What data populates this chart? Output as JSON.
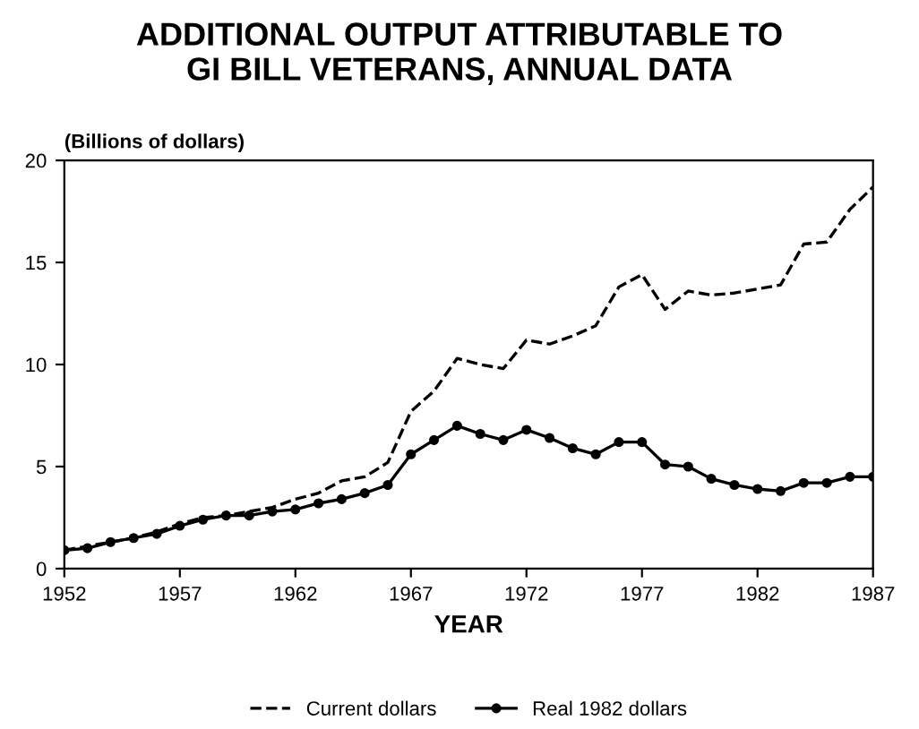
{
  "chart_data": {
    "type": "line",
    "title": "ADDITIONAL OUTPUT ATTRIBUTABLE TO\nGI BILL VETERANS, ANNUAL DATA",
    "ylabel": "(Billions of dollars)",
    "xlabel": "YEAR",
    "x": [
      1952,
      1953,
      1954,
      1955,
      1956,
      1957,
      1958,
      1959,
      1960,
      1961,
      1962,
      1963,
      1964,
      1965,
      1966,
      1967,
      1968,
      1969,
      1970,
      1971,
      1972,
      1973,
      1974,
      1975,
      1976,
      1977,
      1978,
      1979,
      1980,
      1981,
      1982,
      1983,
      1984,
      1985,
      1986,
      1987
    ],
    "series": [
      {
        "name": "Current dollars",
        "color": "#000000",
        "line_style": "dashed",
        "marker": "none",
        "values": [
          0.9,
          1.1,
          1.3,
          1.5,
          1.8,
          2.2,
          2.5,
          2.6,
          2.8,
          3.0,
          3.4,
          3.7,
          4.3,
          4.5,
          5.2,
          7.7,
          8.7,
          10.3,
          10.0,
          9.8,
          11.2,
          11.0,
          11.4,
          11.9,
          13.8,
          14.4,
          12.7,
          13.6,
          13.4,
          13.5,
          13.7,
          13.9,
          15.9,
          16.0,
          17.6,
          18.7
        ]
      },
      {
        "name": "Real 1982 dollars",
        "color": "#000000",
        "line_style": "solid",
        "marker": "circle",
        "values": [
          0.9,
          1.0,
          1.3,
          1.5,
          1.7,
          2.1,
          2.4,
          2.6,
          2.6,
          2.8,
          2.9,
          3.2,
          3.4,
          3.7,
          4.1,
          5.6,
          6.3,
          7.0,
          6.6,
          6.3,
          6.8,
          6.4,
          5.9,
          5.6,
          6.2,
          6.2,
          5.1,
          5.0,
          4.4,
          4.1,
          3.9,
          3.8,
          4.2,
          4.2,
          4.5,
          4.5
        ]
      }
    ],
    "xlim": [
      1952,
      1987
    ],
    "xticks": [
      1952,
      1957,
      1962,
      1967,
      1972,
      1977,
      1982,
      1987
    ],
    "ylim": [
      0,
      20
    ],
    "yticks": [
      0,
      5,
      10,
      15,
      20
    ],
    "grid": false,
    "legend": "bottom"
  }
}
